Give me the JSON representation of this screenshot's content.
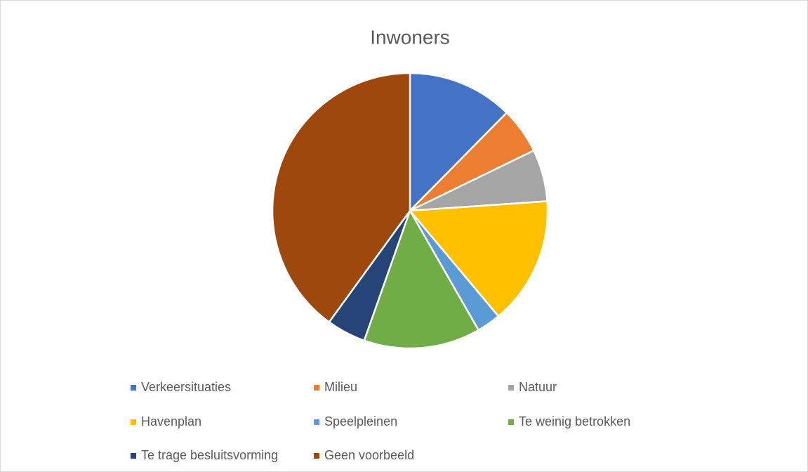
{
  "chart_data": {
    "type": "pie",
    "title": "Inwoners",
    "categories": [
      "Verkeersituaties",
      "Milieu",
      "Natuur",
      "Havenplan",
      "Speelpleinen",
      "Te weinig betrokken",
      "Te trage besluitsvorming",
      "Geen voorbeeld"
    ],
    "values": [
      12.4,
      5.4,
      6.1,
      15,
      2.8,
      13.7,
      4.6,
      40
    ],
    "colors": [
      "#4472c4",
      "#ed7d31",
      "#a5a5a5",
      "#ffc000",
      "#5b9bd5",
      "#70ad47",
      "#264478",
      "#9e480e"
    ],
    "legend": "bottom"
  }
}
